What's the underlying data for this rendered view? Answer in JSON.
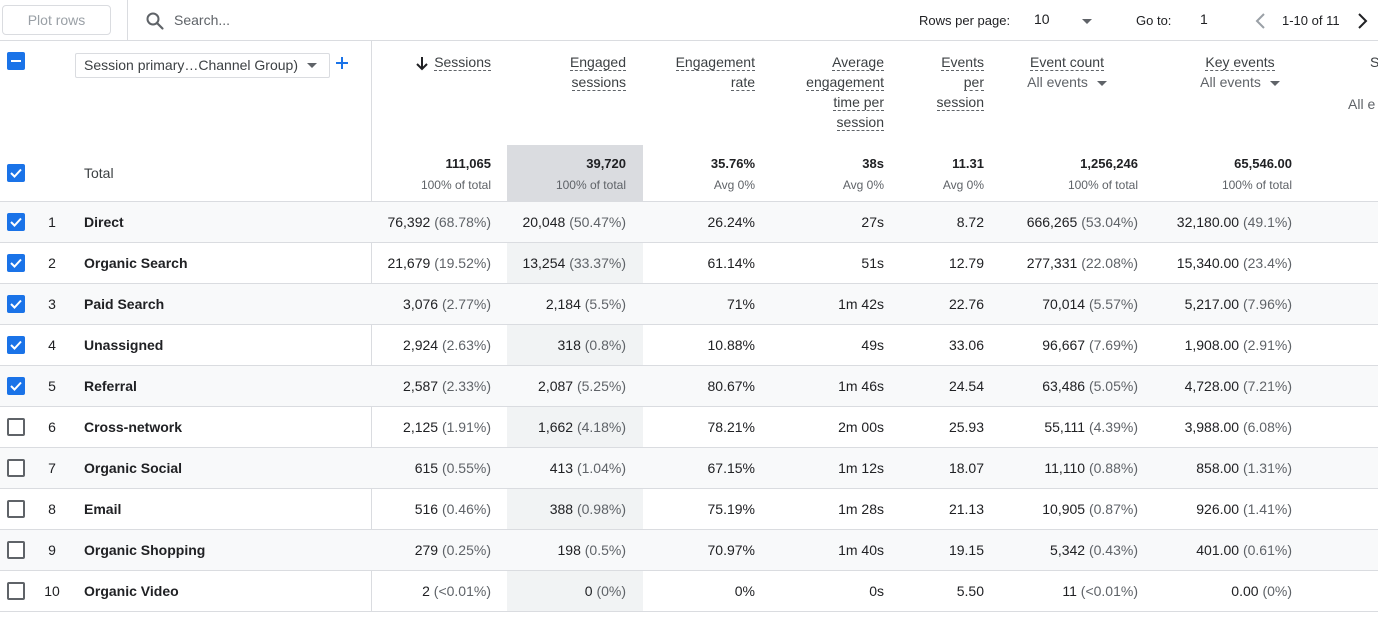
{
  "toolbar": {
    "plot_rows_label": "Plot rows",
    "search_placeholder": "Search...",
    "rows_per_page_label": "Rows per page:",
    "rows_per_page_value": "10",
    "goto_label": "Go to:",
    "goto_value": "1",
    "range_text": "1-10 of 11"
  },
  "dimension": {
    "selector_label": "Session primary…Channel Group)"
  },
  "columns": {
    "sessions": "Sessions",
    "engaged_sessions_1": "Engaged",
    "engaged_sessions_2": "sessions",
    "engagement_rate_1": "Engagement",
    "engagement_rate_2": "rate",
    "avg_time_1": "Average",
    "avg_time_2": "engagement",
    "avg_time_3": "time per",
    "avg_time_4": "session",
    "events_per_1": "Events",
    "events_per_2": "per",
    "events_per_3": "session",
    "event_count": "Event count",
    "event_count_filter": "All events",
    "key_events": "Key events",
    "key_events_filter": "All events",
    "partial_col_title": "S",
    "partial_col_filter": "All e"
  },
  "totals": {
    "label": "Total",
    "sessions": "111,065",
    "sessions_sub": "100% of total",
    "engaged": "39,720",
    "engaged_sub": "100% of total",
    "rate": "35.76%",
    "rate_sub": "Avg 0%",
    "avg_time": "38s",
    "avg_time_sub": "Avg 0%",
    "events_per": "11.31",
    "events_per_sub": "Avg 0%",
    "event_count": "1,256,246",
    "event_count_sub": "100% of total",
    "key_events": "65,546.00",
    "key_events_sub": "100% of total"
  },
  "rows": [
    {
      "n": "1",
      "channel": "Direct",
      "checked": true,
      "sessions": "76,392",
      "sessions_pct": "(68.78%)",
      "engaged": "20,048",
      "engaged_pct": "(50.47%)",
      "rate": "26.24%",
      "avg_time": "27s",
      "events_per": "8.72",
      "event_count": "666,265",
      "event_count_pct": "(53.04%)",
      "key_events": "32,180.00",
      "key_events_pct": "(49.1%)"
    },
    {
      "n": "2",
      "channel": "Organic Search",
      "checked": true,
      "sessions": "21,679",
      "sessions_pct": "(19.52%)",
      "engaged": "13,254",
      "engaged_pct": "(33.37%)",
      "rate": "61.14%",
      "avg_time": "51s",
      "events_per": "12.79",
      "event_count": "277,331",
      "event_count_pct": "(22.08%)",
      "key_events": "15,340.00",
      "key_events_pct": "(23.4%)"
    },
    {
      "n": "3",
      "channel": "Paid Search",
      "checked": true,
      "sessions": "3,076",
      "sessions_pct": "(2.77%)",
      "engaged": "2,184",
      "engaged_pct": "(5.5%)",
      "rate": "71%",
      "avg_time": "1m 42s",
      "events_per": "22.76",
      "event_count": "70,014",
      "event_count_pct": "(5.57%)",
      "key_events": "5,217.00",
      "key_events_pct": "(7.96%)"
    },
    {
      "n": "4",
      "channel": "Unassigned",
      "checked": true,
      "sessions": "2,924",
      "sessions_pct": "(2.63%)",
      "engaged": "318",
      "engaged_pct": "(0.8%)",
      "rate": "10.88%",
      "avg_time": "49s",
      "events_per": "33.06",
      "event_count": "96,667",
      "event_count_pct": "(7.69%)",
      "key_events": "1,908.00",
      "key_events_pct": "(2.91%)"
    },
    {
      "n": "5",
      "channel": "Referral",
      "checked": true,
      "sessions": "2,587",
      "sessions_pct": "(2.33%)",
      "engaged": "2,087",
      "engaged_pct": "(5.25%)",
      "rate": "80.67%",
      "avg_time": "1m 46s",
      "events_per": "24.54",
      "event_count": "63,486",
      "event_count_pct": "(5.05%)",
      "key_events": "4,728.00",
      "key_events_pct": "(7.21%)"
    },
    {
      "n": "6",
      "channel": "Cross-network",
      "checked": false,
      "sessions": "2,125",
      "sessions_pct": "(1.91%)",
      "engaged": "1,662",
      "engaged_pct": "(4.18%)",
      "rate": "78.21%",
      "avg_time": "2m 00s",
      "events_per": "25.93",
      "event_count": "55,111",
      "event_count_pct": "(4.39%)",
      "key_events": "3,988.00",
      "key_events_pct": "(6.08%)"
    },
    {
      "n": "7",
      "channel": "Organic Social",
      "checked": false,
      "sessions": "615",
      "sessions_pct": "(0.55%)",
      "engaged": "413",
      "engaged_pct": "(1.04%)",
      "rate": "67.15%",
      "avg_time": "1m 12s",
      "events_per": "18.07",
      "event_count": "11,110",
      "event_count_pct": "(0.88%)",
      "key_events": "858.00",
      "key_events_pct": "(1.31%)"
    },
    {
      "n": "8",
      "channel": "Email",
      "checked": false,
      "sessions": "516",
      "sessions_pct": "(0.46%)",
      "engaged": "388",
      "engaged_pct": "(0.98%)",
      "rate": "75.19%",
      "avg_time": "1m 28s",
      "events_per": "21.13",
      "event_count": "10,905",
      "event_count_pct": "(0.87%)",
      "key_events": "926.00",
      "key_events_pct": "(1.41%)"
    },
    {
      "n": "9",
      "channel": "Organic Shopping",
      "checked": false,
      "sessions": "279",
      "sessions_pct": "(0.25%)",
      "engaged": "198",
      "engaged_pct": "(0.5%)",
      "rate": "70.97%",
      "avg_time": "1m 40s",
      "events_per": "19.15",
      "event_count": "5,342",
      "event_count_pct": "(0.43%)",
      "key_events": "401.00",
      "key_events_pct": "(0.61%)"
    },
    {
      "n": "10",
      "channel": "Organic Video",
      "checked": false,
      "sessions": "2",
      "sessions_pct": "(<0.01%)",
      "engaged": "0",
      "engaged_pct": "(0%)",
      "rate": "0%",
      "avg_time": "0s",
      "events_per": "5.50",
      "event_count": "11",
      "event_count_pct": "(<0.01%)",
      "key_events": "0.00",
      "key_events_pct": "(0%)"
    }
  ],
  "colors": {
    "accent": "#1a73e8",
    "border": "#dadce0",
    "muted": "#5f6368",
    "highlight_column": "#f1f3f4"
  },
  "icons": {
    "search": "search-icon",
    "rows_caret": "chevron-down-icon",
    "prev": "chevron-left-icon",
    "next": "chevron-right-icon",
    "add": "plus-icon",
    "sort": "arrow-down-icon"
  }
}
